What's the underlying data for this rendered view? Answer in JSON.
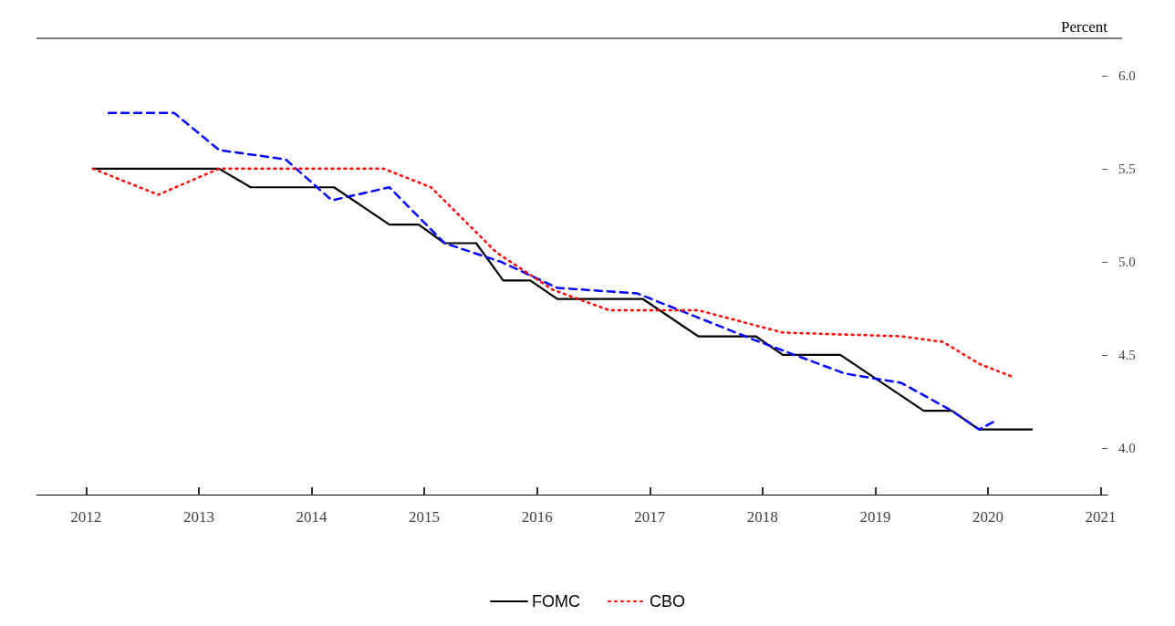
{
  "chart_data": {
    "type": "line",
    "ylabel": "Percent",
    "xlim": [
      2011.56,
      2021.06
    ],
    "ylim": [
      3.75,
      6.2
    ],
    "xticks": [
      2012,
      2013,
      2014,
      2015,
      2016,
      2017,
      2018,
      2019,
      2020,
      2021
    ],
    "yticks": [
      {
        "value": 4,
        "label": "4.0"
      },
      4.5,
      {
        "value": 5,
        "label": "5.0"
      },
      5.5,
      {
        "value": 6,
        "label": "6.0"
      }
    ],
    "legend": "bottom",
    "grid": false,
    "marker": "none",
    "series": [
      {
        "name": "FOMC",
        "color": "#000000",
        "line_style": "solid",
        "x": [
          2012.06,
          2013.18,
          2013.46,
          2014.2,
          2014.69,
          2014.95,
          2015.18,
          2015.46,
          2015.7,
          2015.94,
          2016.18,
          2016.94,
          2017.43,
          2017.94,
          2018.18,
          2018.69,
          2019.43,
          2019.68,
          2019.92,
          2020.39
        ],
        "values": [
          5.5,
          5.5,
          5.4,
          5.4,
          5.2,
          5.2,
          5.1,
          5.1,
          4.9,
          4.9,
          4.8,
          4.8,
          4.6,
          4.6,
          4.5,
          4.5,
          4.2,
          4.2,
          4.1,
          4.1
        ]
      },
      {
        "color": "#0000ff",
        "line_style": "dashed",
        "x": [
          2012.2,
          2012.78,
          2013.18,
          2013.77,
          2014.18,
          2014.69,
          2015.18,
          2015.68,
          2016.18,
          2016.89,
          2017.93,
          2018.73,
          2019.23,
          2019.68,
          2019.92,
          2020.08
        ],
        "values": [
          5.8,
          5.8,
          5.6,
          5.55,
          5.33,
          5.4,
          5.1,
          5.0,
          4.86,
          4.83,
          4.58,
          4.4,
          4.35,
          4.2,
          4.1,
          4.15
        ]
      },
      {
        "name": "CBO",
        "color": "#ff0000",
        "line_style": "dotted",
        "x": [
          2012.06,
          2012.64,
          2013.18,
          2014.64,
          2015.06,
          2015.64,
          2016.14,
          2016.64,
          2017.43,
          2018.18,
          2019.23,
          2019.6,
          2019.93,
          2020.23
        ],
        "values": [
          5.5,
          5.36,
          5.5,
          5.5,
          5.4,
          5.05,
          4.85,
          4.74,
          4.74,
          4.62,
          4.6,
          4.57,
          4.45,
          4.38
        ]
      }
    ]
  }
}
